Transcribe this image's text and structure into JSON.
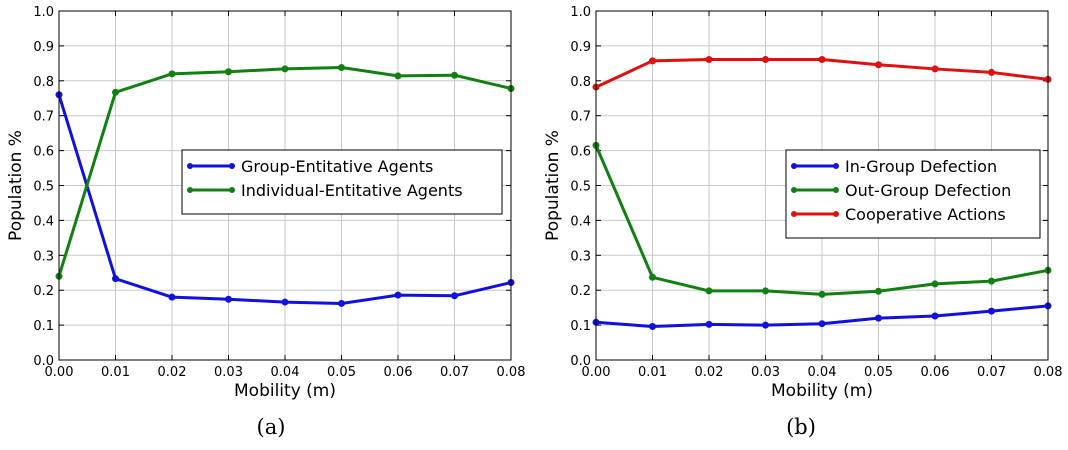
{
  "chart_data": [
    {
      "type": "line",
      "caption": "(a)",
      "xlabel": "Mobility (m)",
      "ylabel": "Population %",
      "xlim": [
        0.0,
        0.08
      ],
      "ylim": [
        0.0,
        1.0
      ],
      "grid": true,
      "legend_position": "center-right",
      "x": [
        0.0,
        0.01,
        0.02,
        0.03,
        0.04,
        0.05,
        0.06,
        0.07,
        0.08
      ],
      "x_tick_labels": [
        "0.00",
        "0.01",
        "0.02",
        "0.03",
        "0.04",
        "0.05",
        "0.06",
        "0.07",
        "0.08"
      ],
      "y_tick_labels": [
        "0.0",
        "0.1",
        "0.2",
        "0.3",
        "0.4",
        "0.5",
        "0.6",
        "0.7",
        "0.8",
        "0.9",
        "1.0"
      ],
      "series": [
        {
          "name": "Group-Entitative Agents",
          "color": "#1010e0",
          "values": [
            0.76,
            0.233,
            0.18,
            0.174,
            0.166,
            0.162,
            0.186,
            0.184,
            0.222
          ]
        },
        {
          "name": "Individual-Entitative Agents",
          "color": "#108010",
          "values": [
            0.24,
            0.767,
            0.82,
            0.826,
            0.834,
            0.838,
            0.814,
            0.816,
            0.778
          ]
        }
      ]
    },
    {
      "type": "line",
      "caption": "(b)",
      "xlabel": "Mobility (m)",
      "ylabel": "Population %",
      "xlim": [
        0.0,
        0.08
      ],
      "ylim": [
        0.0,
        1.0
      ],
      "grid": true,
      "legend_position": "center-right",
      "x": [
        0.0,
        0.01,
        0.02,
        0.03,
        0.04,
        0.05,
        0.06,
        0.07,
        0.08
      ],
      "x_tick_labels": [
        "0.00",
        "0.01",
        "0.02",
        "0.03",
        "0.04",
        "0.05",
        "0.06",
        "0.07",
        "0.08"
      ],
      "y_tick_labels": [
        "0.0",
        "0.1",
        "0.2",
        "0.3",
        "0.4",
        "0.5",
        "0.6",
        "0.7",
        "0.8",
        "0.9",
        "1.0"
      ],
      "series": [
        {
          "name": "In-Group Defection",
          "color": "#1010e0",
          "values": [
            0.108,
            0.096,
            0.102,
            0.1,
            0.104,
            0.12,
            0.126,
            0.14,
            0.155
          ]
        },
        {
          "name": "Out-Group Defection",
          "color": "#108010",
          "values": [
            0.615,
            0.237,
            0.198,
            0.198,
            0.188,
            0.197,
            0.218,
            0.226,
            0.257
          ]
        },
        {
          "name": "Cooperative Actions",
          "color": "#e01010",
          "values": [
            0.782,
            0.857,
            0.861,
            0.861,
            0.861,
            0.846,
            0.834,
            0.824,
            0.804
          ]
        }
      ]
    }
  ]
}
